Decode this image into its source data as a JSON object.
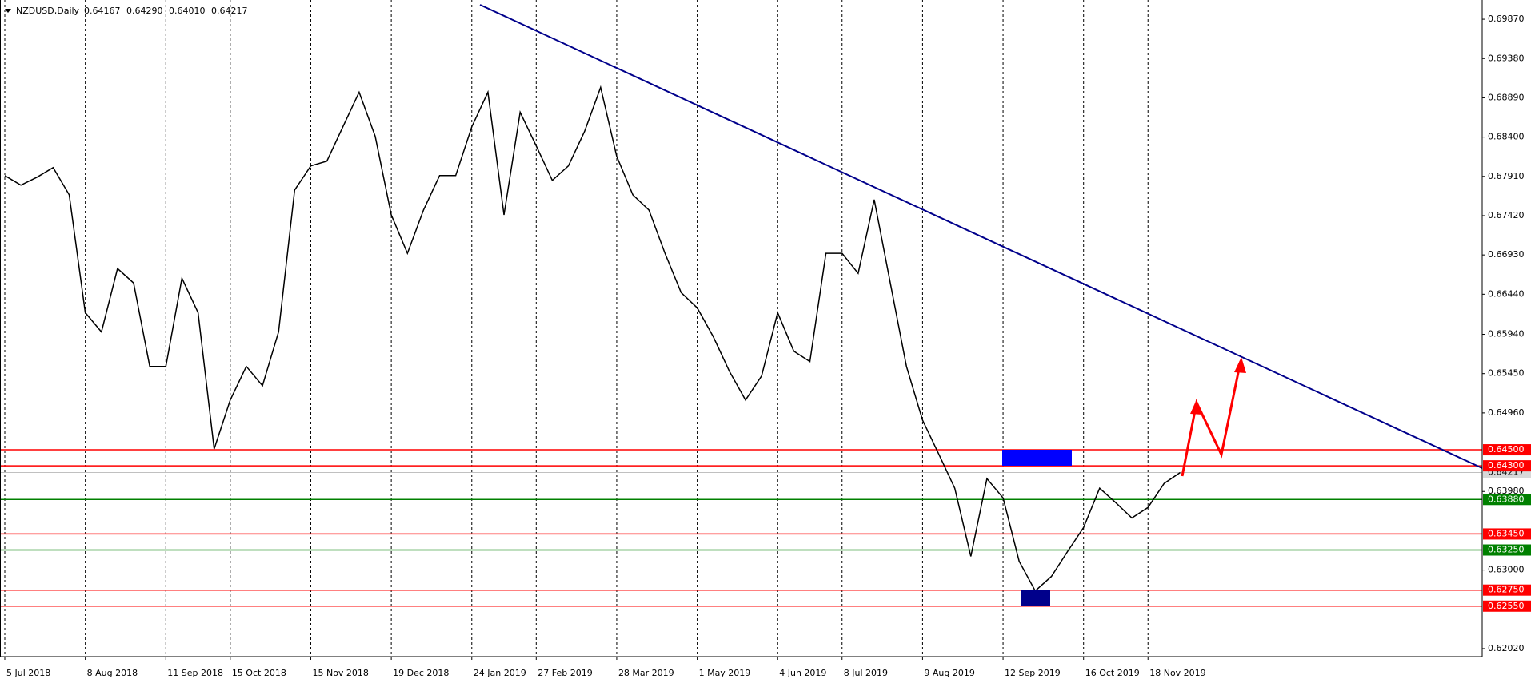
{
  "chart_data": {
    "type": "line",
    "symbol": "NZDUSD,Daily",
    "ohlc": [
      "0.64167",
      "0.64290",
      "0.64010",
      "0.64217"
    ],
    "color": "#000000",
    "categories": [
      "5 Jul 2018",
      null,
      null,
      null,
      null,
      "8 Aug 2018",
      null,
      null,
      null,
      null,
      "11 Sep 2018",
      null,
      null,
      null,
      "15 Oct 2018",
      null,
      null,
      null,
      null,
      "15 Nov 2018",
      null,
      null,
      null,
      null,
      "19 Dec 2018",
      null,
      null,
      null,
      null,
      "24 Jan 2019",
      null,
      null,
      null,
      "27 Feb 2019",
      null,
      null,
      null,
      null,
      "28 Mar 2019",
      null,
      null,
      null,
      null,
      "1 May 2019",
      null,
      null,
      null,
      null,
      "4 Jun 2019",
      null,
      null,
      null,
      "8 Jul 2019",
      null,
      null,
      null,
      null,
      "9 Aug 2019",
      null,
      null,
      null,
      null,
      "12 Sep 2019",
      null,
      null,
      null,
      null,
      "16 Oct 2019",
      null,
      null,
      null,
      "18 Nov 2019",
      null,
      null
    ],
    "values": [
      0.6792,
      0.678,
      0.679,
      0.6802,
      0.6768,
      0.6621,
      0.6597,
      0.6676,
      0.6658,
      0.6554,
      0.6554,
      0.6664,
      0.6621,
      0.6451,
      0.6512,
      0.6554,
      0.653,
      0.6597,
      0.6774,
      0.6804,
      0.681,
      0.6853,
      0.6896,
      0.6841,
      0.6743,
      0.6695,
      0.6749,
      0.6792,
      0.6792,
      0.6853,
      0.6896,
      0.6743,
      0.6871,
      0.6829,
      0.6786,
      0.6804,
      0.6847,
      0.6902,
      0.6816,
      0.6768,
      0.6749,
      0.6695,
      0.6646,
      0.6627,
      0.6591,
      0.6548,
      0.6512,
      0.6542,
      0.6621,
      0.6573,
      0.656,
      0.6695,
      0.6695,
      0.667,
      0.6762,
      0.6658,
      0.6554,
      0.6487,
      0.6445,
      0.6402,
      0.6317,
      0.6414,
      0.639,
      0.6311,
      0.6274,
      0.6292,
      0.6323,
      0.6353,
      0.6402,
      0.6384,
      0.6365,
      0.6378,
      0.6408,
      0.64217
    ],
    "ylim": [
      0.6192,
      0.7007
    ],
    "yticks": [
      {
        "value": 0.6987,
        "label": "0.69870"
      },
      {
        "value": 0.6938,
        "label": "0.69380"
      },
      {
        "value": 0.6889,
        "label": "0.68890"
      },
      {
        "value": 0.684,
        "label": "0.68400"
      },
      {
        "value": 0.6791,
        "label": "0.67910"
      },
      {
        "value": 0.6742,
        "label": "0.67420"
      },
      {
        "value": 0.6693,
        "label": "0.66930"
      },
      {
        "value": 0.6644,
        "label": "0.66440"
      },
      {
        "value": 0.6594,
        "label": "0.65940"
      },
      {
        "value": 0.6545,
        "label": "0.65450"
      },
      {
        "value": 0.6496,
        "label": "0.64960"
      },
      {
        "value": 0.6398,
        "label": "0.63980"
      },
      {
        "value": 0.63,
        "label": "0.63000"
      },
      {
        "value": 0.6202,
        "label": "0.62020"
      }
    ],
    "levels": [
      {
        "value": 0.645,
        "label": "0.64500",
        "color": "#ff0000"
      },
      {
        "value": 0.643,
        "label": "0.64300",
        "color": "#ff0000"
      },
      {
        "value": 0.6388,
        "label": "0.63880",
        "color": "#008000"
      },
      {
        "value": 0.6345,
        "label": "0.63450",
        "color": "#ff0000"
      },
      {
        "value": 0.6325,
        "label": "0.63250",
        "color": "#008000"
      },
      {
        "value": 0.6275,
        "label": "0.62750",
        "color": "#ff0000"
      },
      {
        "value": 0.6255,
        "label": "0.62550",
        "color": "#ff0000"
      }
    ],
    "last_price": 0.64217,
    "grid": true
  }
}
